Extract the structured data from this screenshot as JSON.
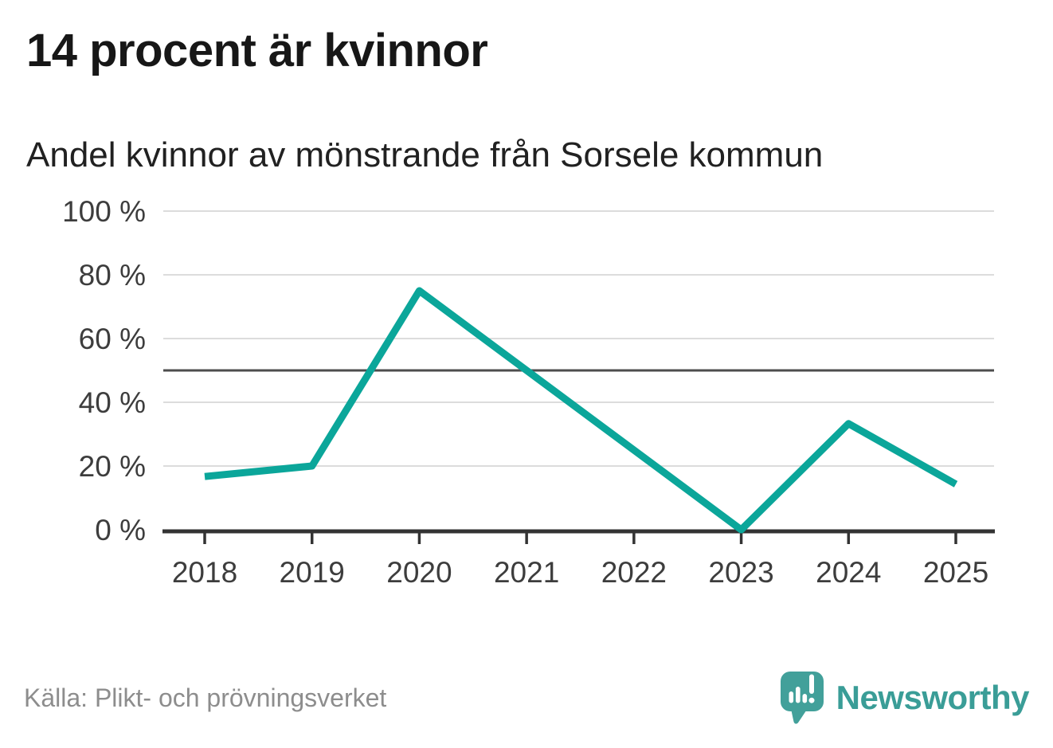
{
  "header": {
    "title": "14 procent är kvinnor",
    "subtitle": "Andel kvinnor av mönstrande från Sorsele kommun"
  },
  "chart_data": {
    "type": "line",
    "title": "Andel kvinnor av mönstrande från Sorsele kommun",
    "x": [
      2018,
      2019,
      2020,
      2021,
      2022,
      2023,
      2024,
      2025
    ],
    "xtick_labels": [
      "2018",
      "2019",
      "2020",
      "2021",
      "2022",
      "2023",
      "2024",
      "2025"
    ],
    "series": [
      {
        "name": "Andel kvinnor av mönstrande",
        "values": [
          16.7,
          20,
          75,
          50,
          25,
          0,
          33.3,
          14.3
        ],
        "color": "#0ba69a"
      }
    ],
    "xlabel": "",
    "ylabel": "",
    "ylim": [
      0,
      100
    ],
    "yticks": [
      0,
      20,
      40,
      60,
      80,
      100
    ],
    "ytick_labels": [
      "0 %",
      "20 %",
      "40 %",
      "60 %",
      "80 %",
      "100 %"
    ],
    "reference_line": {
      "value": 50,
      "color": "#4d4d4d"
    },
    "grid": true,
    "grid_color": "#dcdcdc",
    "axis_color": "#333333",
    "tick_label_color": "#3d3d3d",
    "legend": "none"
  },
  "footer": {
    "source": "Källa: Plikt- och prövningsverket",
    "brand": "Newsworthy",
    "brand_color": "#3a9d97"
  }
}
